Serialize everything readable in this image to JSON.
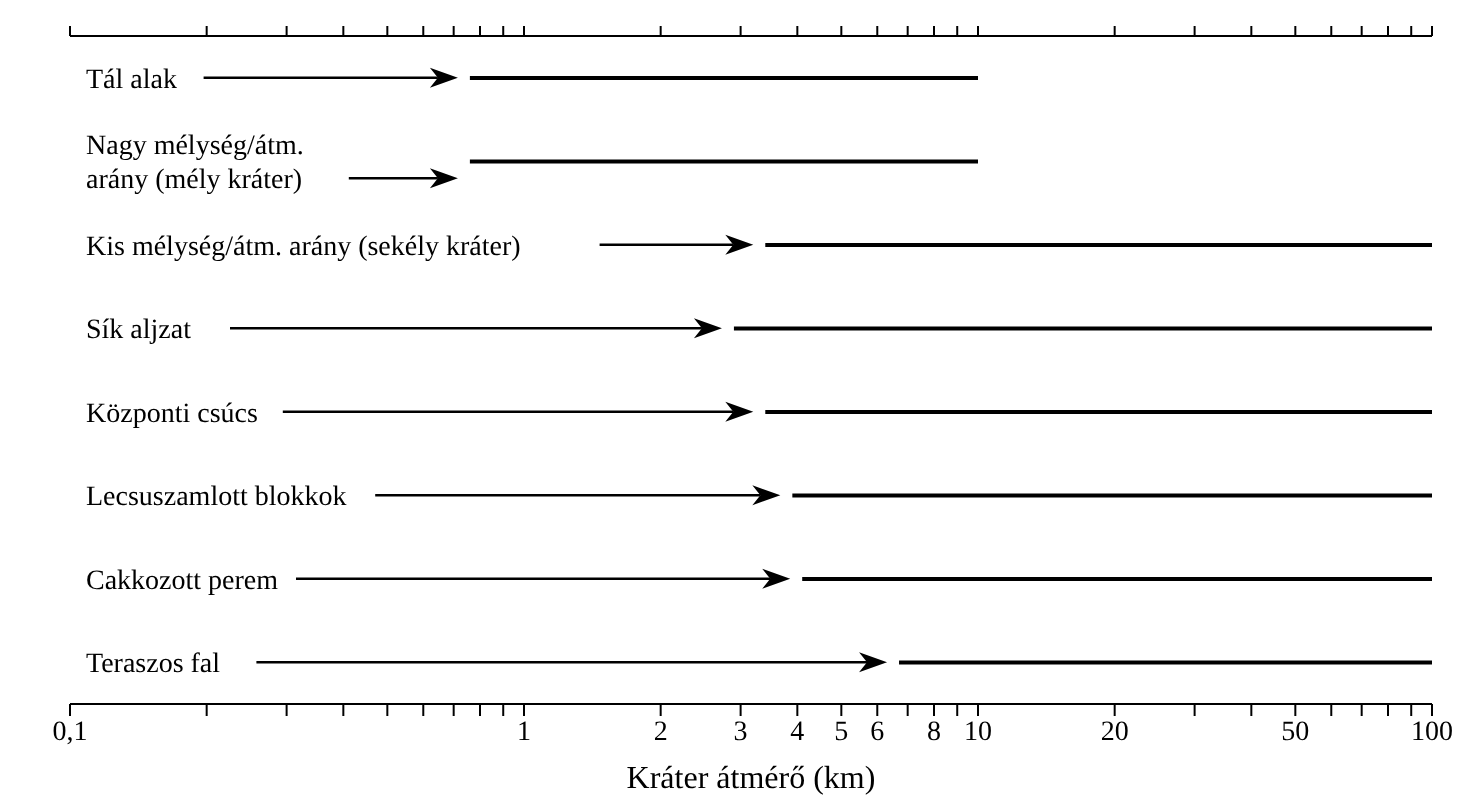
{
  "chart_data": {
    "type": "bar",
    "orientation": "horizontal",
    "xlabel": "Kráter átmérő (km)",
    "categories": [
      "Tál alak",
      "Nagy mélység/átm. arány (mély kráter)",
      "Kis mélység/átm. arány (sekély kráter)",
      "Sík aljzat",
      "Központi csúcs",
      "Lecsuszamlott blokkok",
      "Cakkozott perem",
      "Teraszos fal"
    ],
    "base": [
      0.76,
      0.76,
      3.4,
      2.9,
      3.4,
      3.9,
      4.1,
      6.7
    ],
    "values": [
      9.24,
      9.24,
      96.6,
      97.1,
      96.6,
      96.1,
      95.9,
      93.3
    ],
    "color": "#000000",
    "log": "x",
    "xlim": [
      0.1,
      100
    ],
    "xticks": [
      {
        "value": 0.1,
        "label": "0,1"
      },
      {
        "value": 0.2,
        "label": null
      },
      {
        "value": 0.3,
        "label": null
      },
      {
        "value": 0.4,
        "label": null
      },
      {
        "value": 0.5,
        "label": null
      },
      {
        "value": 0.6,
        "label": null
      },
      {
        "value": 0.7,
        "label": null
      },
      {
        "value": 0.8,
        "label": null
      },
      {
        "value": 0.9,
        "label": null
      },
      1,
      2,
      3,
      4,
      5,
      6,
      {
        "value": 7,
        "label": null
      },
      8,
      {
        "value": 9,
        "label": null
      },
      10,
      20,
      {
        "value": 30,
        "label": null
      },
      {
        "value": 40,
        "label": null
      },
      50,
      {
        "value": 60,
        "label": null
      },
      {
        "value": 70,
        "label": null
      },
      {
        "value": 80,
        "label": null
      },
      {
        "value": 90,
        "label": null
      },
      100
    ]
  }
}
